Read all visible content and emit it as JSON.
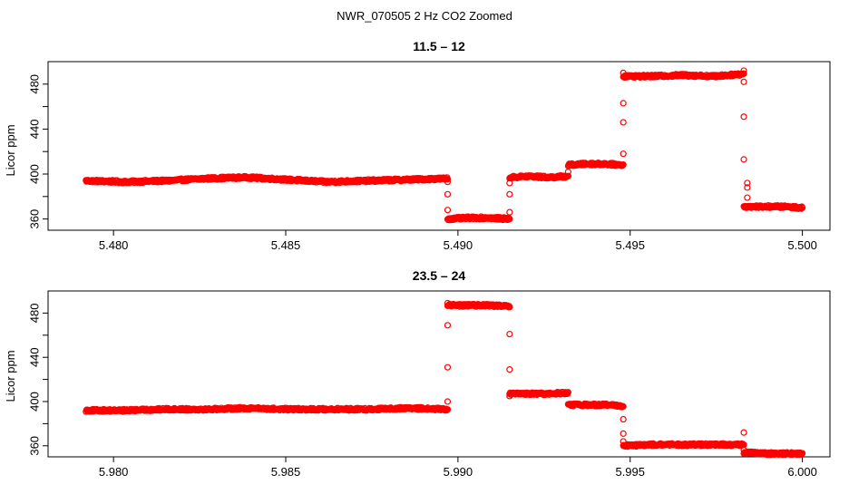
{
  "figure": {
    "title": "NWR_070505  2 Hz CO2 Zoomed"
  },
  "chart_data": [
    {
      "type": "scatter",
      "title": "11.5 – 12",
      "xlabel": "",
      "ylabel": "Licor ppm",
      "xlim": [
        5.4781,
        5.5008
      ],
      "ylim": [
        350,
        500
      ],
      "xticks": [
        "5.480",
        "5.485",
        "5.490",
        "5.495",
        "5.500"
      ],
      "yticks": [
        "360",
        "400",
        "440",
        "480"
      ],
      "grid": false,
      "legend": "none",
      "marker": "open-circle",
      "color": "#ff0000",
      "segments": [
        {
          "x_start": 5.4792,
          "x_end": 5.4897,
          "y": [
            394,
            393,
            394,
            396,
            397,
            395,
            393,
            394,
            395,
            396
          ]
        },
        {
          "x_start": 5.4897,
          "x_end": 5.4915,
          "y": [
            360,
            361,
            361,
            360
          ]
        },
        {
          "x_start": 5.4915,
          "x_end": 5.4932,
          "y": [
            397,
            398,
            397,
            398
          ]
        },
        {
          "x_start": 5.4932,
          "x_end": 5.4948,
          "y": [
            408,
            409,
            409,
            408
          ]
        },
        {
          "x_start": 5.4948,
          "x_end": 5.4983,
          "y": [
            487,
            487,
            488,
            487,
            489
          ]
        },
        {
          "x_start": 5.4983,
          "x_end": 5.5,
          "y": [
            371,
            371,
            371,
            370
          ]
        }
      ],
      "transition_points": [
        {
          "x": 5.4897,
          "y": 393
        },
        {
          "x": 5.4897,
          "y": 382
        },
        {
          "x": 5.4897,
          "y": 368
        },
        {
          "x": 5.4915,
          "y": 366
        },
        {
          "x": 5.4915,
          "y": 382
        },
        {
          "x": 5.4915,
          "y": 392
        },
        {
          "x": 5.4932,
          "y": 402
        },
        {
          "x": 5.4948,
          "y": 418
        },
        {
          "x": 5.4948,
          "y": 446
        },
        {
          "x": 5.4948,
          "y": 463
        },
        {
          "x": 5.4948,
          "y": 490
        },
        {
          "x": 5.4983,
          "y": 492
        },
        {
          "x": 5.4983,
          "y": 482
        },
        {
          "x": 5.4983,
          "y": 451
        },
        {
          "x": 5.4983,
          "y": 413
        },
        {
          "x": 5.4984,
          "y": 392
        },
        {
          "x": 5.4984,
          "y": 388
        },
        {
          "x": 5.4984,
          "y": 379
        }
      ]
    },
    {
      "type": "scatter",
      "title": "23.5 – 24",
      "xlabel": "",
      "ylabel": "Licor ppm",
      "xlim": [
        5.9781,
        6.0008
      ],
      "ylim": [
        350,
        500
      ],
      "xticks": [
        "5.980",
        "5.985",
        "5.990",
        "5.995",
        "6.000"
      ],
      "yticks": [
        "360",
        "400",
        "440",
        "480"
      ],
      "grid": false,
      "legend": "none",
      "marker": "open-circle",
      "color": "#ff0000",
      "segments": [
        {
          "x_start": 5.9792,
          "x_end": 5.9897,
          "y": [
            392,
            392,
            393,
            393,
            394,
            393,
            393,
            393,
            394,
            393
          ]
        },
        {
          "x_start": 5.9897,
          "x_end": 5.9915,
          "y": [
            487,
            487,
            487,
            486
          ]
        },
        {
          "x_start": 5.9915,
          "x_end": 5.9932,
          "y": [
            407,
            407,
            407,
            408
          ]
        },
        {
          "x_start": 5.9932,
          "x_end": 5.9948,
          "y": [
            397,
            397,
            397,
            396
          ]
        },
        {
          "x_start": 5.9948,
          "x_end": 5.9983,
          "y": [
            360,
            361,
            361,
            361,
            361
          ]
        },
        {
          "x_start": 5.9983,
          "x_end": 6.0,
          "y": [
            354,
            353,
            353,
            353
          ]
        }
      ],
      "transition_points": [
        {
          "x": 5.9897,
          "y": 400
        },
        {
          "x": 5.9897,
          "y": 431
        },
        {
          "x": 5.9897,
          "y": 469
        },
        {
          "x": 5.9897,
          "y": 489
        },
        {
          "x": 5.9915,
          "y": 461
        },
        {
          "x": 5.9915,
          "y": 429
        },
        {
          "x": 5.9915,
          "y": 405
        },
        {
          "x": 5.9948,
          "y": 384
        },
        {
          "x": 5.9948,
          "y": 371
        },
        {
          "x": 5.9948,
          "y": 364
        },
        {
          "x": 5.9983,
          "y": 372
        },
        {
          "x": 5.9983,
          "y": 356
        }
      ]
    }
  ]
}
